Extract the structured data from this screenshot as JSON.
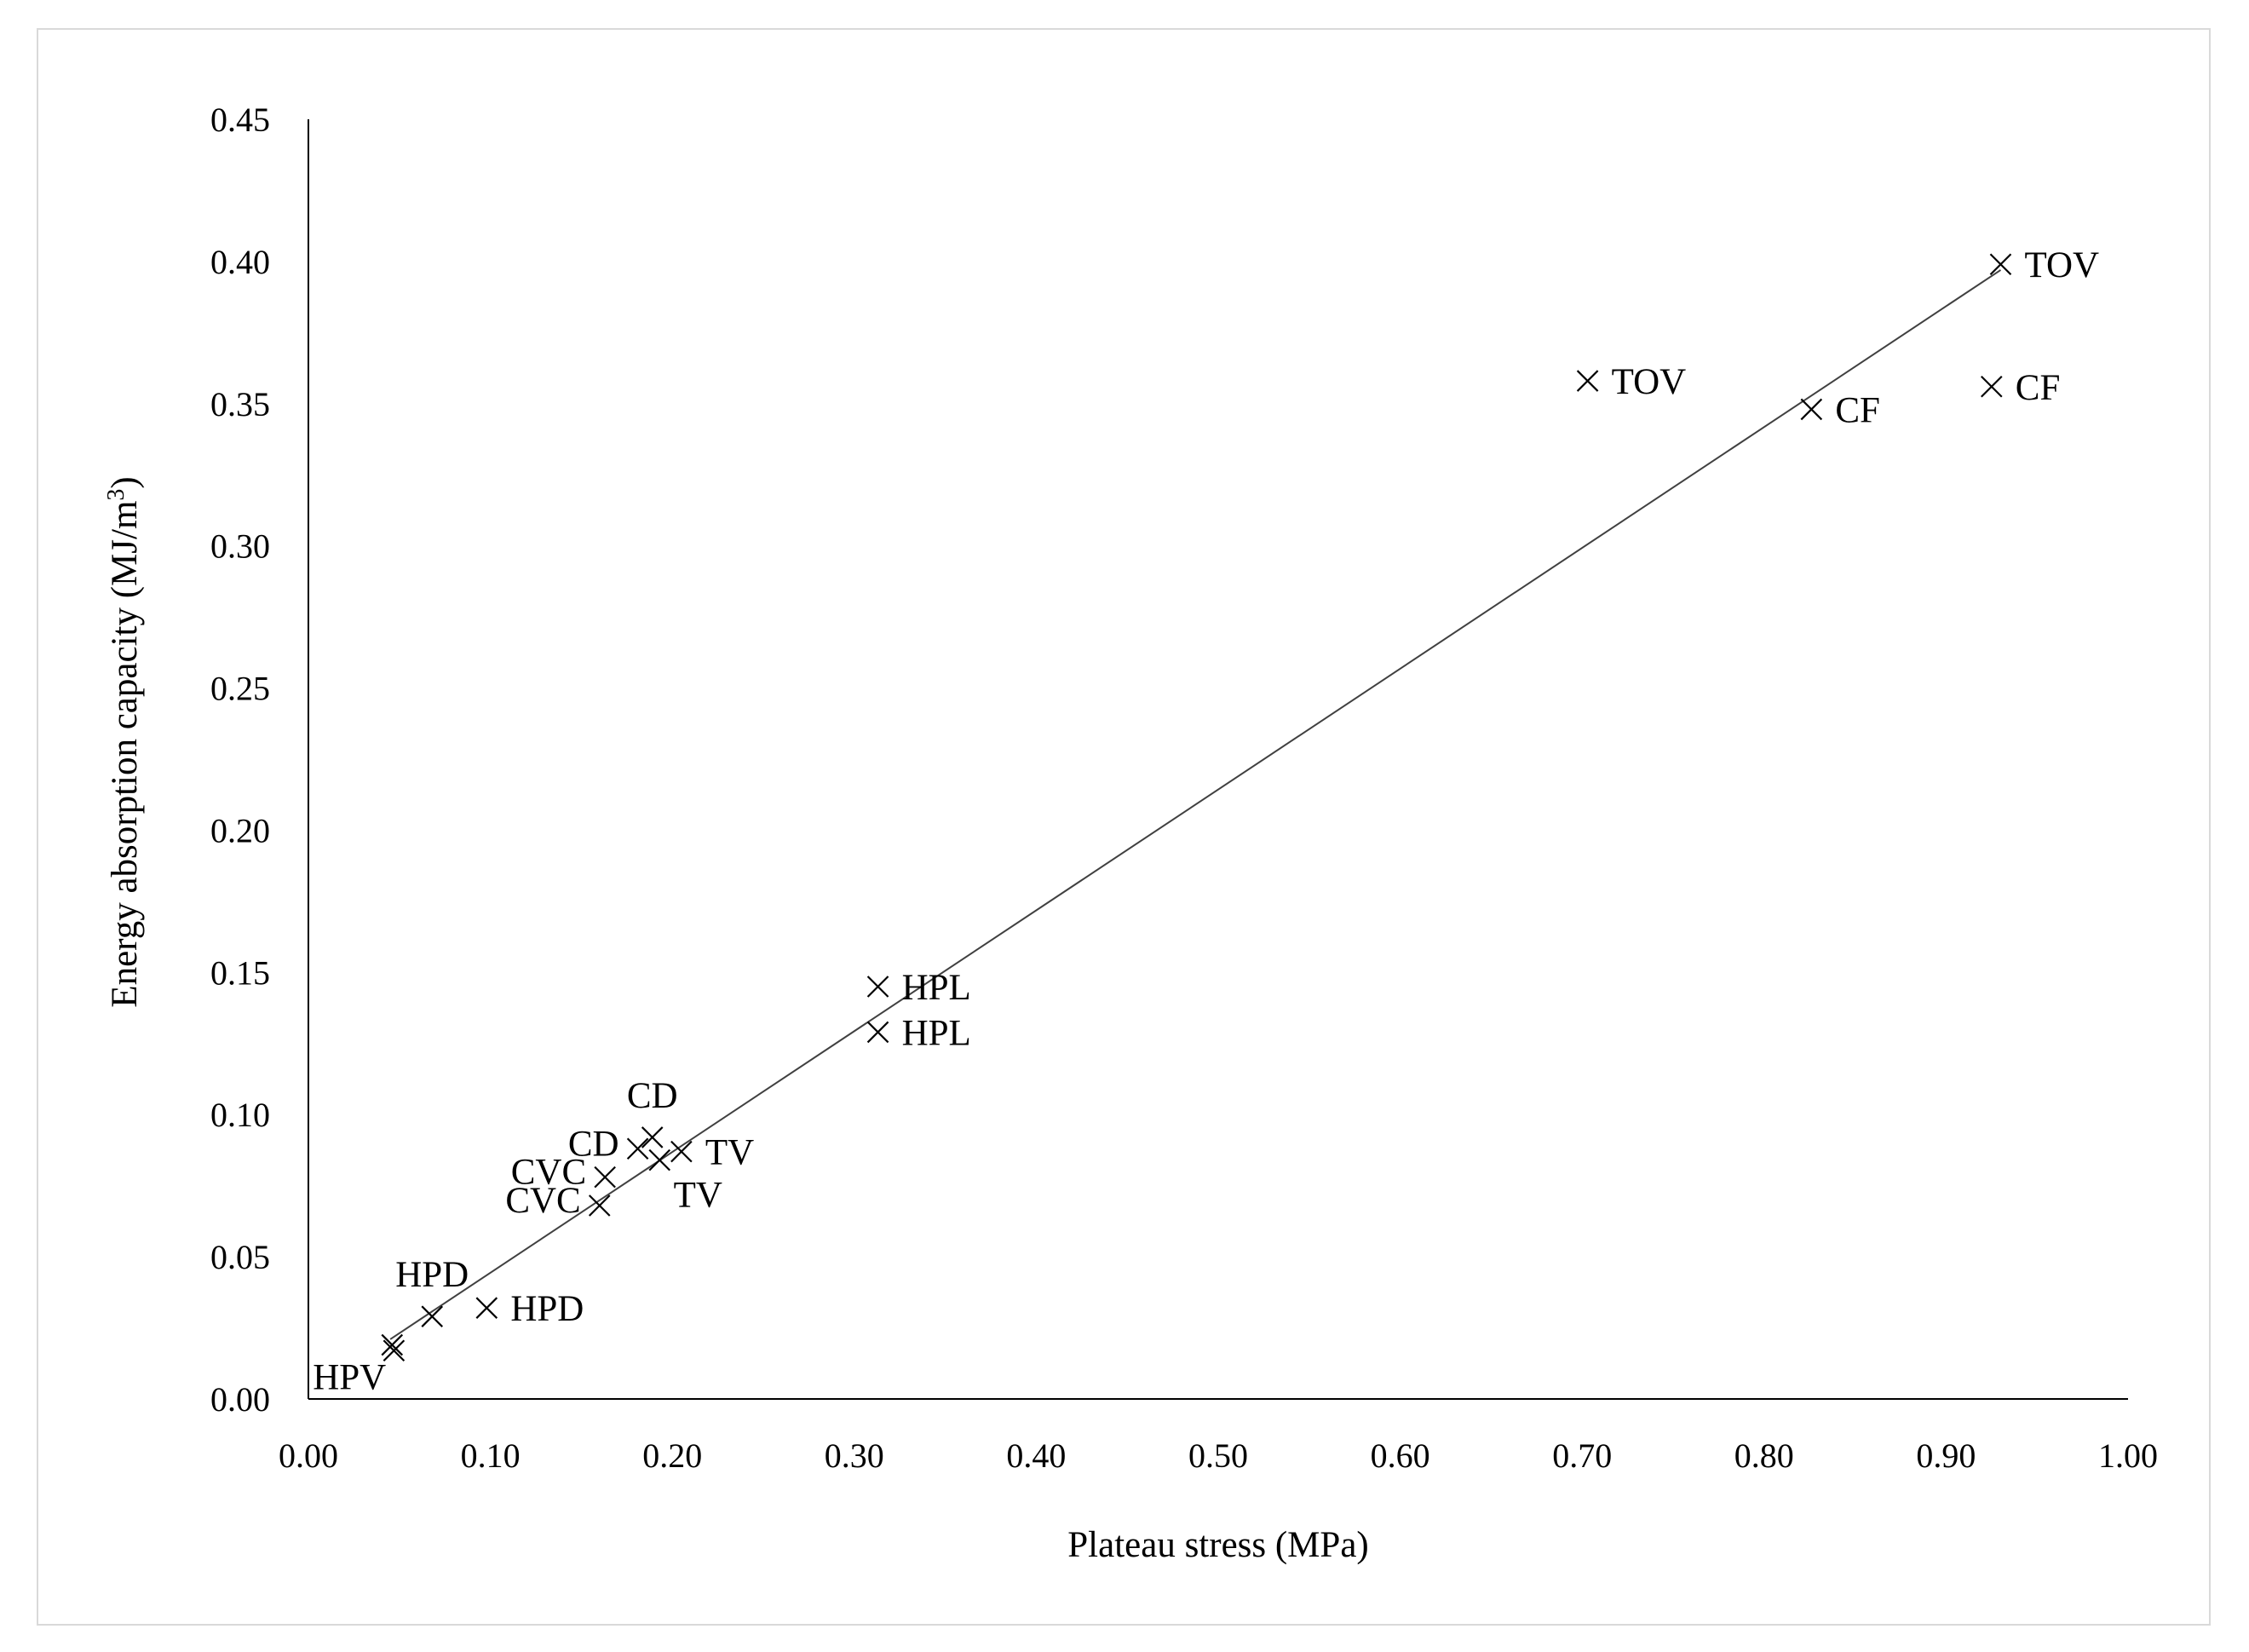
{
  "chart_data": {
    "type": "scatter",
    "xlabel": "Plateau stress (MPa)",
    "ylabel_main": "Energy absorption capacity (MJ/m",
    "ylabel_sup": "3",
    "ylabel_end": ")",
    "xlim": [
      0,
      1
    ],
    "ylim": [
      0,
      0.45
    ],
    "x_ticks": [
      "0.00",
      "0.10",
      "0.20",
      "0.30",
      "0.40",
      "0.50",
      "0.60",
      "0.70",
      "0.80",
      "0.90",
      "1.00"
    ],
    "y_ticks": [
      "0.00",
      "0.05",
      "0.10",
      "0.15",
      "0.20",
      "0.25",
      "0.30",
      "0.35",
      "0.40",
      "0.45"
    ],
    "marker": "x",
    "points": [
      {
        "label": "TOV",
        "x": 0.93,
        "y": 0.399,
        "label_pos": "right"
      },
      {
        "label": "TOV",
        "x": 0.703,
        "y": 0.358,
        "label_pos": "right"
      },
      {
        "label": "CF",
        "x": 0.826,
        "y": 0.348,
        "label_pos": "right"
      },
      {
        "label": "CF",
        "x": 0.925,
        "y": 0.356,
        "label_pos": "right"
      },
      {
        "label": "HPL",
        "x": 0.313,
        "y": 0.145,
        "label_pos": "right"
      },
      {
        "label": "HPL",
        "x": 0.313,
        "y": 0.129,
        "label_pos": "right"
      },
      {
        "label": "CD",
        "x": 0.189,
        "y": 0.092,
        "label_pos": "above"
      },
      {
        "label": "CD",
        "x": 0.181,
        "y": 0.088,
        "label_pos": "left"
      },
      {
        "label": "TV",
        "x": 0.205,
        "y": 0.087,
        "label_pos": "right"
      },
      {
        "label": "TV",
        "x": 0.193,
        "y": 0.084,
        "label_pos": "below"
      },
      {
        "label": "CVC",
        "x": 0.163,
        "y": 0.078,
        "label_pos": "left"
      },
      {
        "label": "CVC",
        "x": 0.16,
        "y": 0.068,
        "label_pos": "left"
      },
      {
        "label": "HPD",
        "x": 0.068,
        "y": 0.029,
        "label_pos": "above"
      },
      {
        "label": "HPD",
        "x": 0.098,
        "y": 0.032,
        "label_pos": "right"
      },
      {
        "label": "HPV",
        "x": 0.046,
        "y": 0.019,
        "label_pos": "below-left"
      },
      {
        "label": "",
        "x": 0.047,
        "y": 0.017,
        "label_pos": "none"
      }
    ],
    "trendline": {
      "type": "linear",
      "x": [
        0.045,
        0.93
      ],
      "y": [
        0.021,
        0.397
      ]
    },
    "grid": false,
    "legend": "none"
  }
}
